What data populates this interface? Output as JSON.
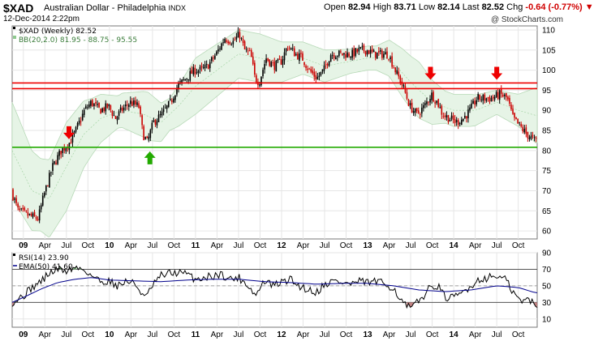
{
  "header": {
    "symbol": "$XAD",
    "description": "Australian Dollar - Philadelphia",
    "exchange": "INDX",
    "date": "12-Dec-2014 2:22pm",
    "open_label": "Open",
    "open": "82.94",
    "high_label": "High",
    "high": "83.71",
    "low_label": "Low",
    "low": "82.14",
    "last_label": "Last",
    "last": "82.52",
    "chg_label": "Chg",
    "chg": "-0.64 (-0.77%)",
    "chg_icon": "down-triangle-icon",
    "brand": "@ StockCharts.com"
  },
  "colors": {
    "up": "#000000",
    "down": "#cc0000",
    "bband_fill": "#e6f4e6",
    "bband_line": "#b7d9b7",
    "resistance": "#ee0000",
    "support": "#22aa00",
    "arrow_down": "#ee0000",
    "arrow_up": "#22aa00",
    "rsi": "#000000",
    "ema": "#00008b"
  },
  "chart_data": [
    {
      "type": "candlestick",
      "legend": [
        "$XAD (Weekly) 82.52",
        "BB(20,2.0) 81.95 - 88.75 - 95.55"
      ],
      "ylim": [
        58,
        111
      ],
      "y_ticks": [
        60,
        65,
        70,
        75,
        80,
        85,
        90,
        95,
        100,
        105,
        110
      ],
      "x_ticks": [
        {
          "label": "09",
          "t": 2009.0,
          "bold": true
        },
        {
          "label": "Apr",
          "t": 2009.25
        },
        {
          "label": "Jul",
          "t": 2009.5
        },
        {
          "label": "Oct",
          "t": 2009.75
        },
        {
          "label": "10",
          "t": 2010.0,
          "bold": true
        },
        {
          "label": "Apr",
          "t": 2010.25
        },
        {
          "label": "Jul",
          "t": 2010.5
        },
        {
          "label": "Oct",
          "t": 2010.75
        },
        {
          "label": "11",
          "t": 2011.0,
          "bold": true
        },
        {
          "label": "Apr",
          "t": 2011.25
        },
        {
          "label": "Jul",
          "t": 2011.5
        },
        {
          "label": "Oct",
          "t": 2011.75
        },
        {
          "label": "12",
          "t": 2012.0,
          "bold": true
        },
        {
          "label": "Apr",
          "t": 2012.25
        },
        {
          "label": "Jul",
          "t": 2012.5
        },
        {
          "label": "Oct",
          "t": 2012.75
        },
        {
          "label": "13",
          "t": 2013.0,
          "bold": true
        },
        {
          "label": "Apr",
          "t": 2013.25
        },
        {
          "label": "Jul",
          "t": 2013.5
        },
        {
          "label": "Oct",
          "t": 2013.75
        },
        {
          "label": "14",
          "t": 2014.0,
          "bold": true
        },
        {
          "label": "Apr",
          "t": 2014.25
        },
        {
          "label": "Jul",
          "t": 2014.5
        },
        {
          "label": "Oct",
          "t": 2014.75
        }
      ],
      "price_path": [
        [
          2008.87,
          70
        ],
        [
          2008.95,
          65
        ],
        [
          2009.05,
          64
        ],
        [
          2009.18,
          63
        ],
        [
          2009.25,
          69
        ],
        [
          2009.35,
          76
        ],
        [
          2009.45,
          80
        ],
        [
          2009.55,
          82
        ],
        [
          2009.62,
          85
        ],
        [
          2009.72,
          90
        ],
        [
          2009.8,
          92
        ],
        [
          2009.9,
          90
        ],
        [
          2010.0,
          91
        ],
        [
          2010.08,
          88
        ],
        [
          2010.15,
          90
        ],
        [
          2010.25,
          92
        ],
        [
          2010.35,
          91
        ],
        [
          2010.4,
          84
        ],
        [
          2010.45,
          82
        ],
        [
          2010.52,
          87
        ],
        [
          2010.62,
          89
        ],
        [
          2010.72,
          92
        ],
        [
          2010.8,
          96
        ],
        [
          2010.9,
          98
        ],
        [
          2011.0,
          100
        ],
        [
          2011.08,
          100
        ],
        [
          2011.15,
          101
        ],
        [
          2011.25,
          104
        ],
        [
          2011.35,
          108
        ],
        [
          2011.45,
          107
        ],
        [
          2011.52,
          109
        ],
        [
          2011.58,
          105
        ],
        [
          2011.65,
          104
        ],
        [
          2011.7,
          98
        ],
        [
          2011.75,
          97
        ],
        [
          2011.83,
          103
        ],
        [
          2011.92,
          101
        ],
        [
          2012.0,
          102
        ],
        [
          2012.08,
          106
        ],
        [
          2012.17,
          104
        ],
        [
          2012.25,
          103
        ],
        [
          2012.33,
          100
        ],
        [
          2012.42,
          98
        ],
        [
          2012.5,
          100
        ],
        [
          2012.58,
          104
        ],
        [
          2012.67,
          104
        ],
        [
          2012.75,
          104
        ],
        [
          2012.83,
          104
        ],
        [
          2012.92,
          105
        ],
        [
          2013.0,
          105
        ],
        [
          2013.08,
          104
        ],
        [
          2013.17,
          104
        ],
        [
          2013.25,
          104
        ],
        [
          2013.33,
          100
        ],
        [
          2013.42,
          96
        ],
        [
          2013.5,
          91
        ],
        [
          2013.58,
          89
        ],
        [
          2013.67,
          91
        ],
        [
          2013.75,
          94
        ],
        [
          2013.82,
          92
        ],
        [
          2013.88,
          89
        ],
        [
          2013.96,
          88
        ],
        [
          2014.04,
          87
        ],
        [
          2014.12,
          88
        ],
        [
          2014.2,
          90
        ],
        [
          2014.28,
          93
        ],
        [
          2014.36,
          93
        ],
        [
          2014.45,
          93
        ],
        [
          2014.55,
          94
        ],
        [
          2014.63,
          93
        ],
        [
          2014.7,
          88
        ],
        [
          2014.78,
          86
        ],
        [
          2014.86,
          84
        ],
        [
          2014.95,
          82.5
        ]
      ],
      "bb_mid_path": [
        [
          2008.87,
          80
        ],
        [
          2009.1,
          70
        ],
        [
          2009.3,
          68
        ],
        [
          2009.5,
          76
        ],
        [
          2009.7,
          84
        ],
        [
          2009.9,
          88
        ],
        [
          2010.15,
          90
        ],
        [
          2010.4,
          89
        ],
        [
          2010.6,
          87
        ],
        [
          2010.8,
          91
        ],
        [
          2011.0,
          96
        ],
        [
          2011.25,
          100
        ],
        [
          2011.5,
          104
        ],
        [
          2011.75,
          103
        ],
        [
          2012.0,
          102
        ],
        [
          2012.25,
          103
        ],
        [
          2012.5,
          101
        ],
        [
          2012.75,
          102
        ],
        [
          2013.0,
          103
        ],
        [
          2013.25,
          103
        ],
        [
          2013.5,
          97
        ],
        [
          2013.75,
          92
        ],
        [
          2014.0,
          90
        ],
        [
          2014.25,
          90
        ],
        [
          2014.5,
          92
        ],
        [
          2014.75,
          90
        ],
        [
          2014.95,
          88.75
        ]
      ],
      "bb_halfwidth_path": [
        [
          2008.87,
          12
        ],
        [
          2009.2,
          9
        ],
        [
          2009.5,
          11
        ],
        [
          2009.8,
          7
        ],
        [
          2010.1,
          4
        ],
        [
          2010.45,
          6
        ],
        [
          2010.7,
          4
        ],
        [
          2011.0,
          7
        ],
        [
          2011.5,
          6
        ],
        [
          2011.75,
          6
        ],
        [
          2012.0,
          5
        ],
        [
          2012.25,
          4
        ],
        [
          2012.5,
          4
        ],
        [
          2012.8,
          3
        ],
        [
          2013.1,
          3
        ],
        [
          2013.4,
          6
        ],
        [
          2013.6,
          7
        ],
        [
          2013.9,
          4
        ],
        [
          2014.2,
          4
        ],
        [
          2014.5,
          3
        ],
        [
          2014.75,
          4
        ],
        [
          2014.95,
          6.8
        ]
      ],
      "resistance": [
        96.8,
        95.4
      ],
      "support": 80.8,
      "arrows": [
        {
          "dir": "down",
          "t": 2009.53,
          "y": 82.8,
          "color": "support"
        },
        {
          "dir": "up",
          "t": 2010.47,
          "y": 79.8,
          "color": "support"
        },
        {
          "dir": "down",
          "t": 2013.73,
          "y": 97.6,
          "color": "resistance"
        },
        {
          "dir": "down",
          "t": 2014.5,
          "y": 97.6,
          "color": "resistance"
        }
      ]
    },
    {
      "type": "line",
      "legend": [
        "RSI(14) 23.90",
        "EMA(50) 41.60"
      ],
      "series": [
        {
          "name": "RSI(14)"
        },
        {
          "name": "EMA(50)"
        }
      ],
      "ylim": [
        0,
        90
      ],
      "y_ticks": [
        10,
        30,
        50,
        70,
        90
      ],
      "overbought": 70,
      "oversold": 30,
      "rsi_path": [
        [
          2008.87,
          30
        ],
        [
          2009.0,
          38
        ],
        [
          2009.1,
          48
        ],
        [
          2009.2,
          55
        ],
        [
          2009.3,
          65
        ],
        [
          2009.4,
          70
        ],
        [
          2009.5,
          68
        ],
        [
          2009.6,
          72
        ],
        [
          2009.7,
          70
        ],
        [
          2009.8,
          62
        ],
        [
          2009.9,
          55
        ],
        [
          2010.0,
          56
        ],
        [
          2010.1,
          50
        ],
        [
          2010.2,
          56
        ],
        [
          2010.3,
          52
        ],
        [
          2010.42,
          35
        ],
        [
          2010.5,
          50
        ],
        [
          2010.6,
          62
        ],
        [
          2010.7,
          65
        ],
        [
          2010.8,
          66
        ],
        [
          2010.9,
          64
        ],
        [
          2011.0,
          58
        ],
        [
          2011.1,
          60
        ],
        [
          2011.2,
          62
        ],
        [
          2011.3,
          64
        ],
        [
          2011.4,
          58
        ],
        [
          2011.5,
          60
        ],
        [
          2011.6,
          52
        ],
        [
          2011.7,
          38
        ],
        [
          2011.8,
          56
        ],
        [
          2011.9,
          50
        ],
        [
          2012.0,
          54
        ],
        [
          2012.1,
          58
        ],
        [
          2012.2,
          50
        ],
        [
          2012.3,
          46
        ],
        [
          2012.4,
          42
        ],
        [
          2012.5,
          52
        ],
        [
          2012.6,
          56
        ],
        [
          2012.7,
          54
        ],
        [
          2012.8,
          52
        ],
        [
          2012.9,
          55
        ],
        [
          2013.0,
          54
        ],
        [
          2013.1,
          55
        ],
        [
          2013.2,
          52
        ],
        [
          2013.3,
          48
        ],
        [
          2013.4,
          30
        ],
        [
          2013.5,
          22
        ],
        [
          2013.6,
          32
        ],
        [
          2013.7,
          45
        ],
        [
          2013.8,
          52
        ],
        [
          2013.9,
          36
        ],
        [
          2014.0,
          35
        ],
        [
          2014.1,
          42
        ],
        [
          2014.2,
          50
        ],
        [
          2014.3,
          58
        ],
        [
          2014.4,
          60
        ],
        [
          2014.5,
          62
        ],
        [
          2014.6,
          58
        ],
        [
          2014.7,
          40
        ],
        [
          2014.8,
          30
        ],
        [
          2014.88,
          35
        ],
        [
          2014.95,
          23.9
        ]
      ],
      "ema_path": [
        [
          2008.87,
          30
        ],
        [
          2009.0,
          36
        ],
        [
          2009.2,
          46
        ],
        [
          2009.4,
          54
        ],
        [
          2009.6,
          58
        ],
        [
          2009.8,
          60
        ],
        [
          2010.0,
          57
        ],
        [
          2010.3,
          56
        ],
        [
          2010.6,
          55
        ],
        [
          2010.9,
          57
        ],
        [
          2011.2,
          58
        ],
        [
          2011.5,
          58
        ],
        [
          2011.8,
          55
        ],
        [
          2012.1,
          54
        ],
        [
          2012.4,
          52
        ],
        [
          2012.7,
          53
        ],
        [
          2013.0,
          53
        ],
        [
          2013.3,
          50
        ],
        [
          2013.6,
          45
        ],
        [
          2013.9,
          43
        ],
        [
          2014.2,
          45
        ],
        [
          2014.5,
          50
        ],
        [
          2014.75,
          48
        ],
        [
          2014.95,
          41.6
        ]
      ]
    }
  ]
}
